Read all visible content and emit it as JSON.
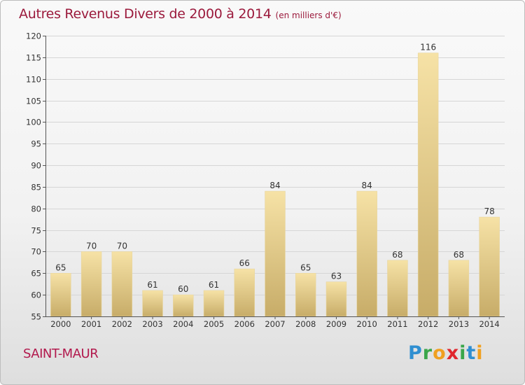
{
  "title": "Autres Revenus Divers de 2000 à 2014",
  "subtitle": "(en milliers d'€)",
  "location": "SAINT-MAUR",
  "logo": {
    "letters": [
      "P",
      "r",
      "o",
      "x",
      "i",
      "t",
      "i"
    ],
    "colors": [
      "#2f8fd1",
      "#3aa64a",
      "#f0a020",
      "#e0262d",
      "#3aa64a",
      "#2f8fd1",
      "#f0a020"
    ]
  },
  "colors": {
    "bar_light": "#f6e2a6",
    "bar_dark": "#c7ac68",
    "title": "#9b1a3c",
    "location": "#b2194d"
  },
  "chart_data": {
    "type": "bar",
    "title": "Autres Revenus Divers de 2000 à 2014",
    "subtitle": "(en milliers d'€)",
    "categories": [
      "2000",
      "2001",
      "2002",
      "2003",
      "2004",
      "2005",
      "2006",
      "2007",
      "2008",
      "2009",
      "2010",
      "2011",
      "2012",
      "2013",
      "2014"
    ],
    "values": [
      65,
      70,
      70,
      61,
      60,
      61,
      66,
      84,
      65,
      63,
      84,
      68,
      116,
      68,
      78
    ],
    "ylim": [
      55,
      120
    ],
    "yticks": [
      55,
      60,
      65,
      70,
      75,
      80,
      85,
      90,
      95,
      100,
      105,
      110,
      115,
      120
    ],
    "grid": true,
    "data_labels": true
  }
}
